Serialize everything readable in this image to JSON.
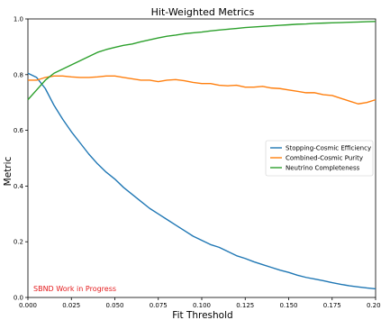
{
  "chart_data": {
    "type": "line",
    "title": "Hit-Weighted Metrics",
    "xlabel": "Fit Threshold",
    "ylabel": "Metric",
    "xlim": [
      0.0,
      0.2
    ],
    "ylim": [
      0.0,
      1.0
    ],
    "x_ticks": [
      "0.000",
      "0.025",
      "0.050",
      "0.075",
      "0.100",
      "0.125",
      "0.150",
      "0.175",
      "0.200"
    ],
    "y_ticks": [
      "0.0",
      "0.2",
      "0.4",
      "0.6",
      "0.8",
      "1.0"
    ],
    "grid": false,
    "legend_position": "center-right",
    "annotation": "SBND Work in Progress",
    "annotation_color": "#e41a1c",
    "x": [
      0.0,
      0.005,
      0.01,
      0.015,
      0.02,
      0.025,
      0.03,
      0.035,
      0.04,
      0.045,
      0.05,
      0.055,
      0.06,
      0.065,
      0.07,
      0.075,
      0.08,
      0.085,
      0.09,
      0.095,
      0.1,
      0.105,
      0.11,
      0.115,
      0.12,
      0.125,
      0.13,
      0.135,
      0.14,
      0.145,
      0.15,
      0.155,
      0.16,
      0.165,
      0.17,
      0.175,
      0.18,
      0.185,
      0.19,
      0.195,
      0.2
    ],
    "series": [
      {
        "name": "Stopping-Cosmic Efficiency",
        "color": "#1f77b4",
        "values": [
          0.805,
          0.79,
          0.75,
          0.69,
          0.64,
          0.595,
          0.555,
          0.515,
          0.48,
          0.45,
          0.425,
          0.395,
          0.37,
          0.345,
          0.32,
          0.3,
          0.28,
          0.26,
          0.24,
          0.22,
          0.205,
          0.19,
          0.18,
          0.165,
          0.15,
          0.14,
          0.128,
          0.118,
          0.108,
          0.098,
          0.09,
          0.08,
          0.072,
          0.066,
          0.06,
          0.053,
          0.047,
          0.042,
          0.038,
          0.034,
          0.031
        ]
      },
      {
        "name": "Combined-Cosmic Purity",
        "color": "#ff7f0e",
        "values": [
          0.78,
          0.78,
          0.79,
          0.795,
          0.795,
          0.792,
          0.79,
          0.79,
          0.792,
          0.795,
          0.795,
          0.79,
          0.785,
          0.78,
          0.78,
          0.775,
          0.78,
          0.782,
          0.778,
          0.772,
          0.768,
          0.768,
          0.762,
          0.76,
          0.762,
          0.755,
          0.755,
          0.758,
          0.752,
          0.75,
          0.745,
          0.74,
          0.735,
          0.735,
          0.728,
          0.725,
          0.715,
          0.705,
          0.695,
          0.7,
          0.71
        ]
      },
      {
        "name": "Neutrino Completeness",
        "color": "#2ca02c",
        "values": [
          0.71,
          0.745,
          0.78,
          0.805,
          0.82,
          0.835,
          0.85,
          0.865,
          0.88,
          0.89,
          0.898,
          0.905,
          0.91,
          0.918,
          0.925,
          0.932,
          0.938,
          0.942,
          0.947,
          0.95,
          0.953,
          0.957,
          0.96,
          0.963,
          0.966,
          0.969,
          0.971,
          0.973,
          0.975,
          0.977,
          0.979,
          0.981,
          0.982,
          0.984,
          0.985,
          0.986,
          0.987,
          0.988,
          0.989,
          0.99,
          0.991
        ]
      }
    ]
  }
}
